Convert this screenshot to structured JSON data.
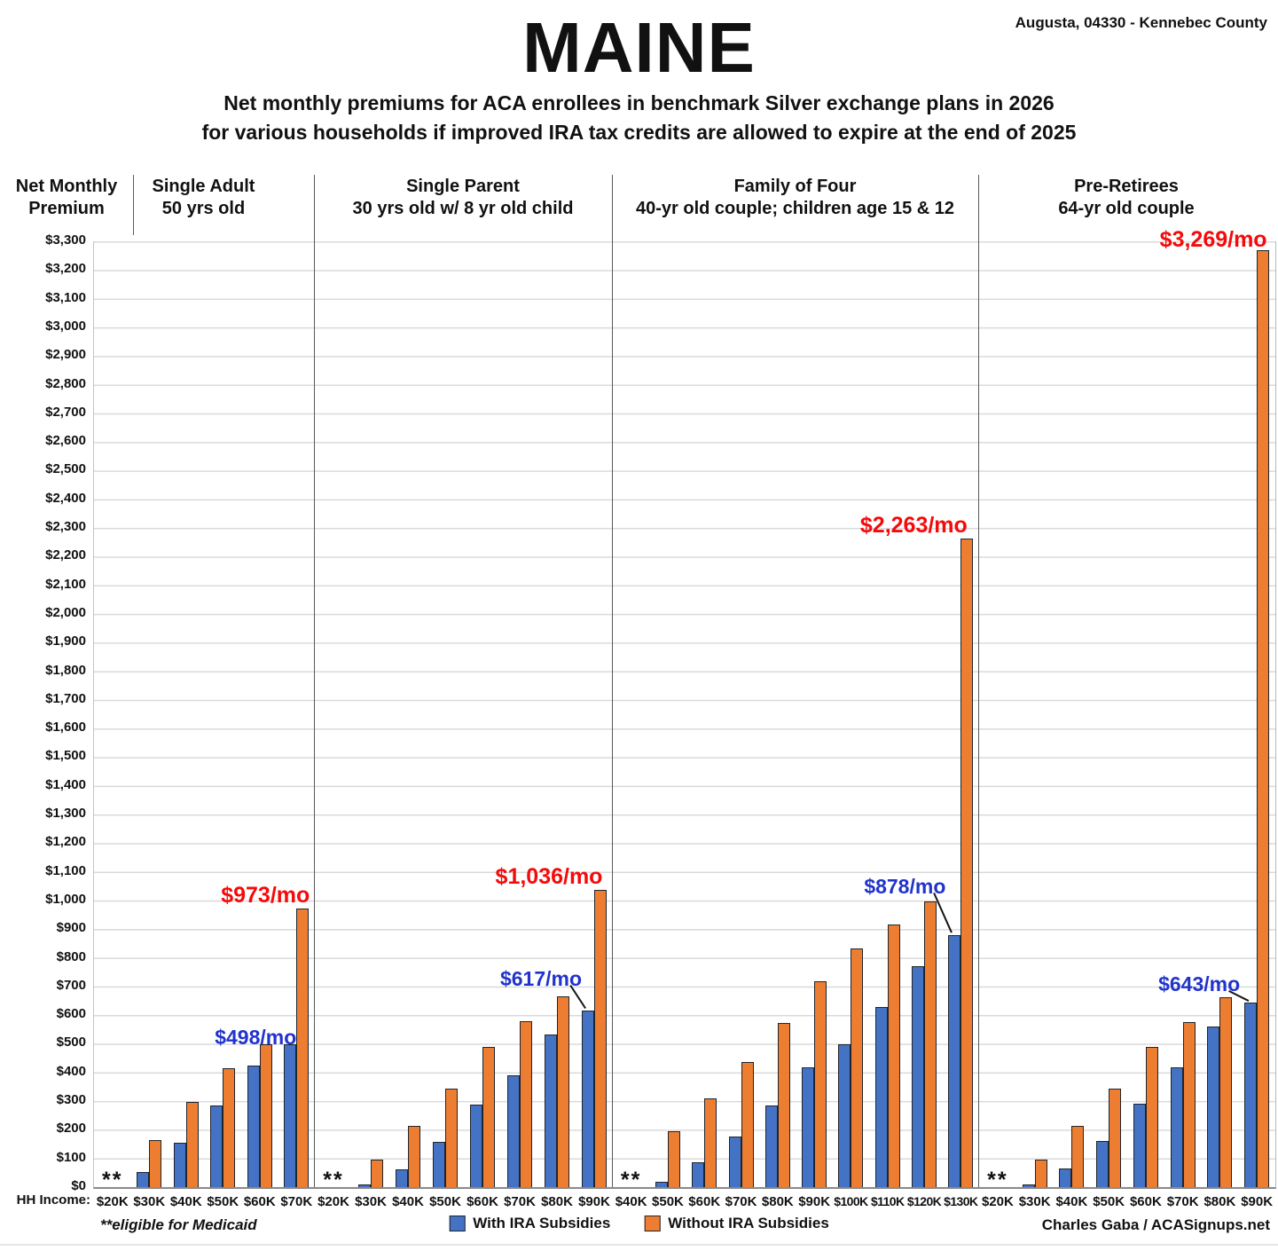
{
  "header": {
    "title": "MAINE",
    "location": "Augusta, 04330 - Kennebec County",
    "subtitle_line1": "Net monthly premiums for ACA enrollees in benchmark Silver exchange plans in 2026",
    "subtitle_line2": "for various households if improved IRA tax credits are allowed to expire at the end of 2025"
  },
  "y_axis": {
    "title_line1": "Net Monthly",
    "title_line2": "Premium",
    "min": 0,
    "max": 3300,
    "step": 100,
    "tick_prefix": "$"
  },
  "x_axis": {
    "label": "HH Income:"
  },
  "medicaid_marker": "**",
  "footnote": "**eligible for Medicaid",
  "credit": "Charles Gaba / ACASignups.net",
  "legend": [
    {
      "label": "With IRA Subsidies",
      "color": "#4472C4"
    },
    {
      "label": "Without IRA Subsidies",
      "color": "#ED7D31"
    }
  ],
  "colors": {
    "with_ira": "#4472C4",
    "without_ira": "#ED7D31",
    "bar_outline": "#20242B",
    "annotation_red": "#F50A0A",
    "annotation_blue": "#2133CC",
    "gridline": "#DADADA",
    "panel_divider": "#5A5A5A"
  },
  "chart_data": [
    {
      "type": "bar",
      "title": "Single Adult",
      "subtitle": "50 yrs old",
      "categories": [
        "$20K",
        "$30K",
        "$40K",
        "$50K",
        "$60K",
        "$70K"
      ],
      "medicaid_category": "$20K",
      "series": [
        {
          "name": "With IRA Subsidies",
          "values": [
            null,
            52,
            155,
            286,
            425,
            498
          ]
        },
        {
          "name": "Without IRA Subsidies",
          "values": [
            null,
            165,
            298,
            416,
            500,
            973
          ]
        }
      ],
      "ylim": [
        0,
        3300
      ]
    },
    {
      "type": "bar",
      "title": "Single Parent",
      "subtitle": "30 yrs old w/ 8 yr old child",
      "categories": [
        "$20K",
        "$30K",
        "$40K",
        "$50K",
        "$60K",
        "$70K",
        "$80K",
        "$90K"
      ],
      "medicaid_category": "$20K",
      "series": [
        {
          "name": "With IRA Subsidies",
          "values": [
            null,
            5,
            62,
            158,
            288,
            390,
            532,
            617
          ]
        },
        {
          "name": "Without IRA Subsidies",
          "values": [
            null,
            97,
            214,
            345,
            490,
            578,
            665,
            1036
          ]
        }
      ],
      "ylim": [
        0,
        3300
      ]
    },
    {
      "type": "bar",
      "title": "Family of Four",
      "subtitle": "40-yr old couple; children age 15 & 12",
      "categories": [
        "$40K",
        "$50K",
        "$60K",
        "$70K",
        "$80K",
        "$90K",
        "$100K",
        "$110K",
        "$120K",
        "$130K"
      ],
      "medicaid_category": "$40K",
      "series": [
        {
          "name": "With IRA Subsidies",
          "values": [
            null,
            20,
            87,
            177,
            284,
            419,
            500,
            630,
            770,
            878
          ]
        },
        {
          "name": "Without IRA Subsidies",
          "values": [
            null,
            196,
            310,
            438,
            573,
            717,
            832,
            917,
            996,
            2263
          ]
        }
      ],
      "ylim": [
        0,
        3300
      ]
    },
    {
      "type": "bar",
      "title": "Pre-Retirees",
      "subtitle": "64-yr old couple",
      "categories": [
        "$20K",
        "$30K",
        "$40K",
        "$50K",
        "$60K",
        "$70K",
        "$80K",
        "$90K"
      ],
      "medicaid_category": "$20K",
      "series": [
        {
          "name": "With IRA Subsidies",
          "values": [
            null,
            8,
            65,
            160,
            290,
            419,
            559,
            643
          ]
        },
        {
          "name": "Without IRA Subsidies",
          "values": [
            null,
            95,
            213,
            344,
            488,
            577,
            663,
            3269
          ]
        }
      ],
      "ylim": [
        0,
        3300
      ]
    }
  ],
  "annotations": [
    {
      "text": "$973/mo",
      "color": "#F50A0A",
      "panel": 0,
      "category": "$70K",
      "series": "without",
      "pointer": false
    },
    {
      "text": "$498/mo",
      "color": "#2133CC",
      "panel": 0,
      "category": "$70K",
      "series": "with",
      "pointer": false
    },
    {
      "text": "$1,036/mo",
      "color": "#F50A0A",
      "panel": 1,
      "category": "$90K",
      "series": "without",
      "pointer": false
    },
    {
      "text": "$617/mo",
      "color": "#2133CC",
      "panel": 1,
      "category": "$90K",
      "series": "with",
      "pointer": true
    },
    {
      "text": "$2,263/mo",
      "color": "#F50A0A",
      "panel": 2,
      "category": "$130K",
      "series": "without",
      "pointer": false
    },
    {
      "text": "$878/mo",
      "color": "#2133CC",
      "panel": 2,
      "category": "$130K",
      "series": "with",
      "pointer": true
    },
    {
      "text": "$3,269/mo",
      "color": "#F50A0A",
      "panel": 3,
      "category": "$90K",
      "series": "without",
      "pointer": false
    },
    {
      "text": "$643/mo",
      "color": "#2133CC",
      "panel": 3,
      "category": "$90K",
      "series": "with",
      "pointer": true
    }
  ]
}
